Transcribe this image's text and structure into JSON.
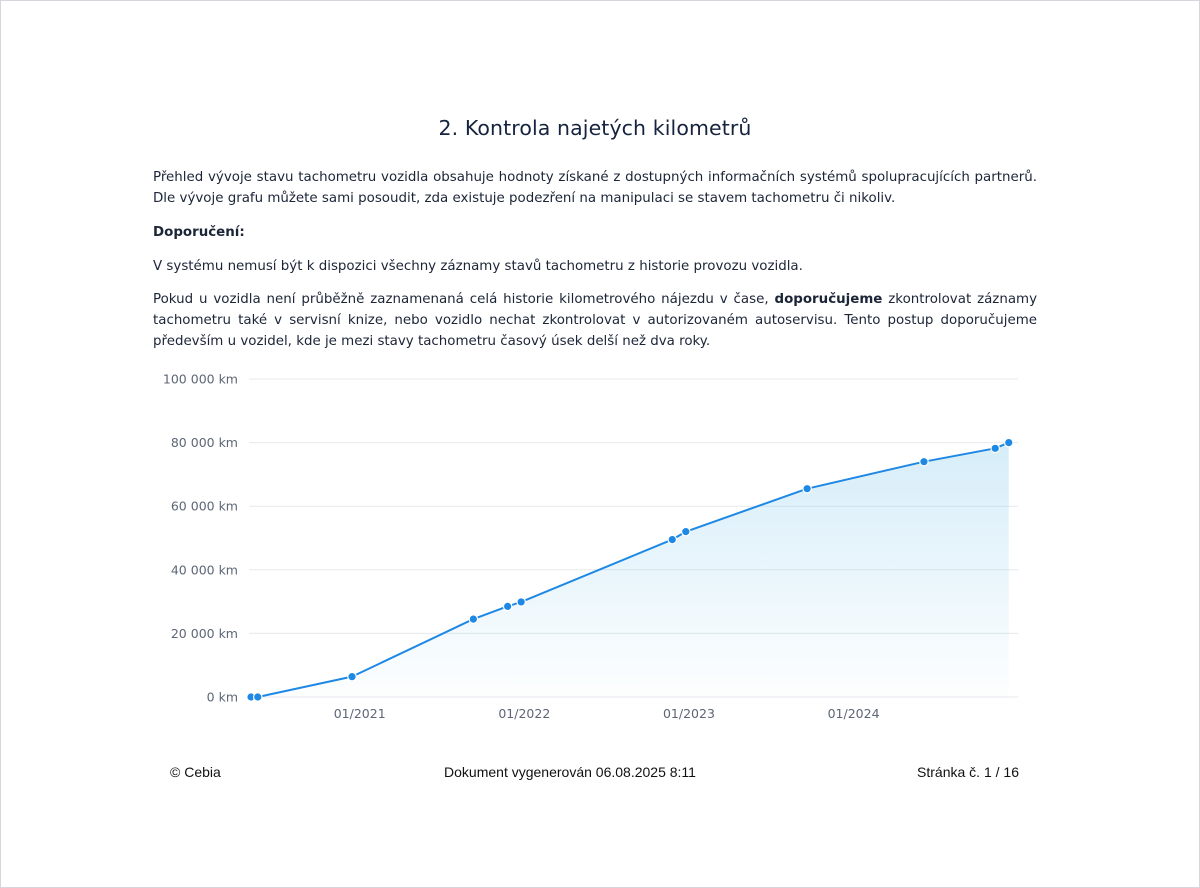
{
  "document": {
    "title": "2. Kontrola najetých kilometrů",
    "intro": "Přehled vývoje stavu tachometru vozidla obsahuje hodnoty získané z dostupných informačních systémů spolupracujících partnerů. Dle vývoje grafu můžete sami posoudit, zda existuje podezření na manipulaci se stavem tachometru či nikoliv.",
    "recommendation_label": "Doporučení:",
    "recommendation_1": "V systému nemusí být k dispozici všechny záznamy stavů tachometru z historie provozu vozidla.",
    "recommendation_2_before": "Pokud u vozidla není průběžně zaznamenaná celá historie kilometrového nájezdu v čase, ",
    "recommendation_2_strong": "doporučujeme",
    "recommendation_2_after": " zkontrolovat záznamy tachometru také v servisní knize, nebo vozidlo nechat zkontrolovat v autorizovaném autoservisu. Tento postup doporučujeme především u vozidel, kde je mezi stavy tachometru časový úsek delší než dva roky."
  },
  "chart_data": {
    "type": "area",
    "title": "",
    "xlabel": "",
    "ylabel": "",
    "x_tick_labels": [
      "01/2021",
      "01/2022",
      "01/2023",
      "01/2024"
    ],
    "y_tick_labels": [
      "0 km",
      "20 000 km",
      "40 000 km",
      "60 000 km",
      "80 000 km",
      "100 000 km"
    ],
    "ylim": [
      0,
      100000
    ],
    "grid": true,
    "line_color": "#1e88e5",
    "fill_color": "#7fc8ec",
    "x_date_range": [
      "2020-05-05",
      "2024-12-15"
    ],
    "series": [
      {
        "points": [
          {
            "date": "2020-05-05",
            "km": 0
          },
          {
            "date": "2020-05-20",
            "km": 0
          },
          {
            "date": "2020-12-15",
            "km": 6400
          },
          {
            "date": "2021-09-10",
            "km": 24500
          },
          {
            "date": "2021-11-25",
            "km": 28500
          },
          {
            "date": "2021-12-25",
            "km": 29900
          },
          {
            "date": "2022-11-25",
            "km": 49500
          },
          {
            "date": "2022-12-25",
            "km": 52000
          },
          {
            "date": "2023-09-20",
            "km": 65500
          },
          {
            "date": "2024-06-05",
            "km": 74000
          },
          {
            "date": "2024-11-10",
            "km": 78200
          },
          {
            "date": "2024-12-10",
            "km": 80000
          }
        ]
      }
    ]
  },
  "footer": {
    "copyright": "© Cebia",
    "generated": "Dokument vygenerován 06.08.2025 8:11",
    "page": "Stránka č. 1 / 16"
  }
}
